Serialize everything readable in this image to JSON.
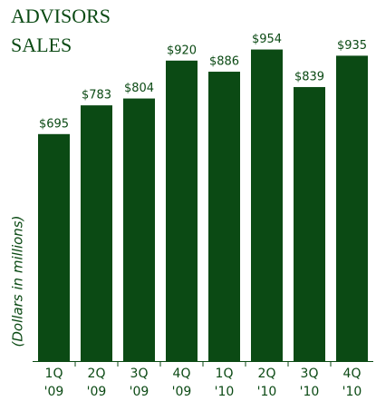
{
  "chart_data": {
    "type": "bar",
    "title": [
      "ADVISORS",
      "SALES"
    ],
    "y_label": "(Dollars in millions)",
    "categories": [
      [
        "1Q",
        "'09"
      ],
      [
        "2Q",
        "'09"
      ],
      [
        "3Q",
        "'09"
      ],
      [
        "4Q",
        "'09"
      ],
      [
        "1Q",
        "'10"
      ],
      [
        "2Q",
        "'10"
      ],
      [
        "3Q",
        "'10"
      ],
      [
        "4Q",
        "'10"
      ]
    ],
    "values": [
      695,
      783,
      804,
      920,
      886,
      954,
      839,
      935
    ],
    "value_labels": [
      "$695",
      "$783",
      "$804",
      "$920",
      "$886",
      "$954",
      "$839",
      "$935"
    ],
    "color": "#0b4a14",
    "ylim": [
      0,
      1000
    ]
  }
}
